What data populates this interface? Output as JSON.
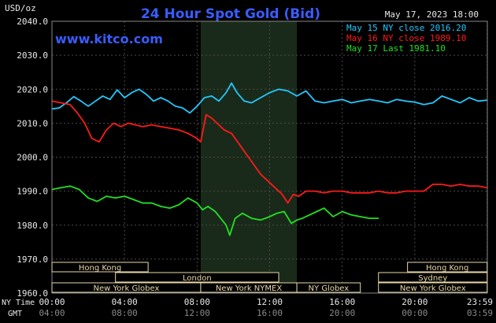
{
  "header": {
    "y_unit": "USD/oz",
    "title": "24 Hour Spot Gold (Bid)",
    "timestamp": "May 17, 2023 18:00",
    "website": "www.kitco.com"
  },
  "legend": [
    {
      "label": "May 15 NY close 2016.20",
      "color": "#22c8ff"
    },
    {
      "label": "May 16 NY close 1989.10",
      "color": "#ff1a1a"
    },
    {
      "label": "May 17 Last 1981.10",
      "color": "#22e022"
    }
  ],
  "axis": {
    "ny_time_label": "NY Time",
    "gmt_label": "GMT",
    "y_ticks": [
      "2040.0",
      "2030.0",
      "2020.0",
      "2010.0",
      "2000.0",
      "1990.0",
      "1980.0",
      "1970.0",
      "1960.0"
    ],
    "x_ticks_ny": [
      "00:00",
      "04:00",
      "08:00",
      "12:00",
      "16:00",
      "20:00",
      "23:59"
    ],
    "x_ticks_gmt": [
      "04:00",
      "08:00",
      "12:00",
      "16:00",
      "20:00",
      "00:00",
      "03:59"
    ]
  },
  "sessions": [
    {
      "label": "Hong Kong",
      "start_h": 0.0,
      "end_h": 5.3,
      "row": 0
    },
    {
      "label": "Hong Kong",
      "start_h": 19.6,
      "end_h": 24.0,
      "row": 0
    },
    {
      "label": "London",
      "start_h": 3.5,
      "end_h": 12.5,
      "row": 1
    },
    {
      "label": "Sydney",
      "start_h": 18.0,
      "end_h": 24.0,
      "row": 1
    },
    {
      "label": "New York Globex",
      "start_h": 0.0,
      "end_h": 8.2,
      "row": 2
    },
    {
      "label": "New York NYMEX",
      "start_h": 8.2,
      "end_h": 13.5,
      "row": 2
    },
    {
      "label": "NY Globex",
      "start_h": 13.5,
      "end_h": 17.0,
      "row": 2
    },
    {
      "label": "New York Globex",
      "start_h": 18.0,
      "end_h": 24.0,
      "row": 2
    }
  ],
  "colors": {
    "background": "#000000",
    "plot_background": "#000000",
    "nymex_band": "#1a2a1a",
    "grid": "#4a4a4a",
    "title": "#3a5cff",
    "session_box": "#e8d8a8",
    "text": "#e8e8e8"
  },
  "chart_data": {
    "type": "line",
    "title": "24 Hour Spot Gold (Bid)",
    "xlabel": "NY Time",
    "ylabel": "USD/oz",
    "xlim": [
      0,
      24
    ],
    "ylim": [
      1960,
      2040
    ],
    "grid": true,
    "legend_position": "top-right",
    "highlight_band_hours": [
      8.2,
      13.5
    ],
    "series": [
      {
        "name": "May 15 NY close 2016.20",
        "color": "#22c8ff",
        "x": [
          0.0,
          0.4,
          0.8,
          1.2,
          1.6,
          2.0,
          2.4,
          2.8,
          3.2,
          3.6,
          4.0,
          4.4,
          4.8,
          5.2,
          5.6,
          6.0,
          6.4,
          6.8,
          7.2,
          7.6,
          8.0,
          8.4,
          8.8,
          9.2,
          9.6,
          9.9,
          10.2,
          10.6,
          11.0,
          11.5,
          12.0,
          12.5,
          13.0,
          13.5,
          14.0,
          14.5,
          15.0,
          15.5,
          16.0,
          16.5,
          17.0,
          17.5,
          18.0,
          18.5,
          19.0,
          19.5,
          20.0,
          20.5,
          21.0,
          21.5,
          22.0,
          22.5,
          23.0,
          23.5,
          23.99
        ],
        "y": [
          2014.2,
          2014.5,
          2016.0,
          2017.8,
          2016.5,
          2015.0,
          2016.5,
          2018.0,
          2017.0,
          2019.8,
          2017.5,
          2019.0,
          2020.0,
          2018.5,
          2016.5,
          2017.5,
          2016.5,
          2015.0,
          2014.5,
          2013.0,
          2015.0,
          2017.5,
          2018.0,
          2016.5,
          2019.0,
          2021.8,
          2019.0,
          2016.5,
          2016.0,
          2017.5,
          2019.0,
          2020.0,
          2019.5,
          2018.0,
          2019.5,
          2016.5,
          2016.0,
          2016.5,
          2017.0,
          2016.0,
          2016.5,
          2017.0,
          2016.5,
          2016.0,
          2017.0,
          2016.5,
          2016.2,
          2015.5,
          2016.0,
          2018.0,
          2017.0,
          2016.0,
          2017.5,
          2016.5,
          2016.8
        ]
      },
      {
        "name": "May 16 NY close 1989.10",
        "color": "#ff1a1a",
        "x": [
          0.0,
          0.5,
          1.0,
          1.4,
          1.8,
          2.2,
          2.6,
          3.0,
          3.4,
          3.8,
          4.2,
          4.6,
          5.0,
          5.5,
          6.0,
          6.5,
          7.0,
          7.5,
          8.0,
          8.2,
          8.5,
          8.8,
          9.1,
          9.5,
          9.9,
          10.3,
          10.7,
          11.1,
          11.5,
          11.9,
          12.3,
          12.7,
          13.0,
          13.3,
          13.6,
          14.0,
          14.5,
          15.0,
          15.5,
          16.0,
          16.5,
          17.0,
          17.5,
          18.0,
          18.5,
          19.0,
          19.5,
          20.0,
          20.5,
          21.0,
          21.5,
          22.0,
          22.5,
          23.0,
          23.5,
          23.99
        ],
        "y": [
          2016.5,
          2016.0,
          2015.5,
          2013.0,
          2010.0,
          2005.5,
          2004.5,
          2008.0,
          2010.0,
          2009.0,
          2010.0,
          2009.5,
          2009.0,
          2009.5,
          2009.0,
          2008.5,
          2008.0,
          2007.0,
          2005.5,
          2004.5,
          2012.5,
          2011.5,
          2010.0,
          2008.0,
          2007.0,
          2004.0,
          2001.0,
          1998.0,
          1995.0,
          1993.0,
          1991.0,
          1989.0,
          1986.5,
          1989.0,
          1988.5,
          1990.0,
          1990.0,
          1989.5,
          1990.0,
          1990.0,
          1989.5,
          1989.5,
          1989.5,
          1990.0,
          1989.5,
          1989.5,
          1990.0,
          1990.0,
          1990.0,
          1992.0,
          1992.0,
          1991.5,
          1992.0,
          1991.5,
          1991.5,
          1991.0
        ]
      },
      {
        "name": "May 17 Last 1981.10",
        "color": "#22e022",
        "x": [
          0.0,
          0.5,
          1.0,
          1.5,
          2.0,
          2.5,
          3.0,
          3.5,
          4.0,
          4.5,
          5.0,
          5.5,
          6.0,
          6.5,
          7.0,
          7.5,
          8.0,
          8.3,
          8.6,
          9.0,
          9.3,
          9.6,
          9.8,
          10.1,
          10.5,
          11.0,
          11.5,
          12.0,
          12.4,
          12.8,
          13.2,
          13.5,
          13.8,
          14.2,
          14.6,
          15.0,
          15.5,
          16.0,
          16.5,
          17.0,
          17.5,
          18.0
        ],
        "y": [
          1990.5,
          1991.0,
          1991.5,
          1990.5,
          1988.0,
          1987.0,
          1988.5,
          1988.0,
          1988.5,
          1987.5,
          1986.5,
          1986.5,
          1985.5,
          1985.0,
          1986.0,
          1988.0,
          1986.5,
          1984.5,
          1985.5,
          1984.0,
          1982.0,
          1980.0,
          1977.0,
          1982.0,
          1983.5,
          1982.0,
          1981.5,
          1982.5,
          1983.5,
          1984.0,
          1980.5,
          1981.5,
          1982.0,
          1983.0,
          1984.0,
          1985.0,
          1982.5,
          1984.0,
          1983.0,
          1982.5,
          1982.0,
          1982.0
        ]
      }
    ]
  }
}
